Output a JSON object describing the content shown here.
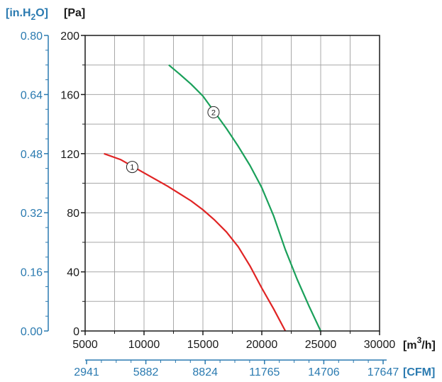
{
  "chart_data": {
    "type": "line",
    "x": {
      "label_unit_base": "[m",
      "label_unit_sup": "3",
      "label_unit_tail": "/h]",
      "lim": [
        5000,
        30000
      ],
      "ticks": [
        5000,
        10000,
        15000,
        20000,
        25000,
        30000
      ],
      "tick_labels": [
        "5000",
        "10000",
        "15000",
        "20000",
        "25000",
        "30000"
      ]
    },
    "x2": {
      "unit": "[CFM]",
      "ticks": [
        2941,
        5882,
        8824,
        11765,
        14706,
        17647
      ],
      "tick_labels": [
        "2941",
        "5882",
        "8824",
        "11765",
        "14706",
        "17647"
      ]
    },
    "y": {
      "unit": "[Pa]",
      "lim": [
        0,
        200
      ],
      "ticks": [
        0,
        40,
        80,
        120,
        160,
        200
      ],
      "tick_labels": [
        "0",
        "40",
        "80",
        "120",
        "160",
        "200"
      ]
    },
    "y2": {
      "unit_prefix": "[in.H",
      "unit_sub": "2",
      "unit_suffix": "O]",
      "ticks": [
        0.0,
        0.16,
        0.32,
        0.48,
        0.64,
        0.8
      ],
      "tick_labels": [
        "0.00",
        "0.16",
        "0.32",
        "0.48",
        "0.64",
        "0.80"
      ]
    },
    "grid": true,
    "series": [
      {
        "marker_label": "①",
        "color": "#e02424",
        "marker_at": [
          9000,
          111
        ],
        "points": [
          [
            6600,
            120
          ],
          [
            8000,
            116
          ],
          [
            10000,
            107
          ],
          [
            12000,
            98
          ],
          [
            14000,
            88
          ],
          [
            15000,
            82
          ],
          [
            16000,
            75
          ],
          [
            17000,
            67
          ],
          [
            18000,
            57
          ],
          [
            19000,
            44
          ],
          [
            20000,
            29
          ],
          [
            21000,
            15
          ],
          [
            22000,
            0
          ]
        ]
      },
      {
        "marker_label": "②",
        "color": "#1aa05a",
        "marker_at": [
          15900,
          148
        ],
        "points": [
          [
            12100,
            180
          ],
          [
            13000,
            174
          ],
          [
            14000,
            167
          ],
          [
            15000,
            159
          ],
          [
            16000,
            148
          ],
          [
            17000,
            137
          ],
          [
            18000,
            125
          ],
          [
            19000,
            112
          ],
          [
            20000,
            97
          ],
          [
            21000,
            78
          ],
          [
            22000,
            55
          ],
          [
            23000,
            35
          ],
          [
            24000,
            17
          ],
          [
            25000,
            0
          ]
        ]
      }
    ]
  }
}
